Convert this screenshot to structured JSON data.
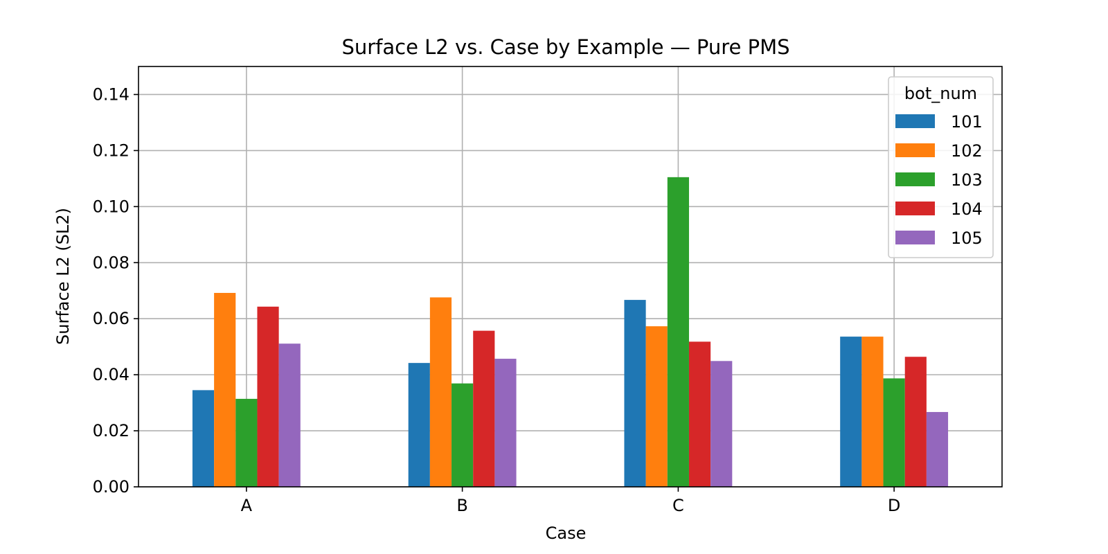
{
  "chart_data": {
    "type": "bar",
    "title": "Surface L2 vs. Case by Example — Pure PMS",
    "xlabel": "Case",
    "ylabel": "Surface L2 (SL2)",
    "categories": [
      "A",
      "B",
      "C",
      "D"
    ],
    "ylim": [
      0,
      0.15
    ],
    "yticks": [
      "0.00",
      "0.02",
      "0.04",
      "0.06",
      "0.08",
      "0.10",
      "0.12",
      "0.14"
    ],
    "grid": true,
    "legend": {
      "title": "bot_num",
      "placement": "top-right"
    },
    "series": [
      {
        "name": "101",
        "color": "#1f77b4",
        "values": [
          0.0345,
          0.0442,
          0.0667,
          0.0536
        ]
      },
      {
        "name": "102",
        "color": "#ff7f0e",
        "values": [
          0.0692,
          0.0676,
          0.0573,
          0.0536
        ]
      },
      {
        "name": "103",
        "color": "#2ca02c",
        "values": [
          0.0314,
          0.0369,
          0.1105,
          0.0387
        ]
      },
      {
        "name": "104",
        "color": "#d62728",
        "values": [
          0.0643,
          0.0557,
          0.0518,
          0.0464
        ]
      },
      {
        "name": "105",
        "color": "#9467bd",
        "values": [
          0.0511,
          0.0457,
          0.0449,
          0.0267
        ]
      }
    ]
  }
}
